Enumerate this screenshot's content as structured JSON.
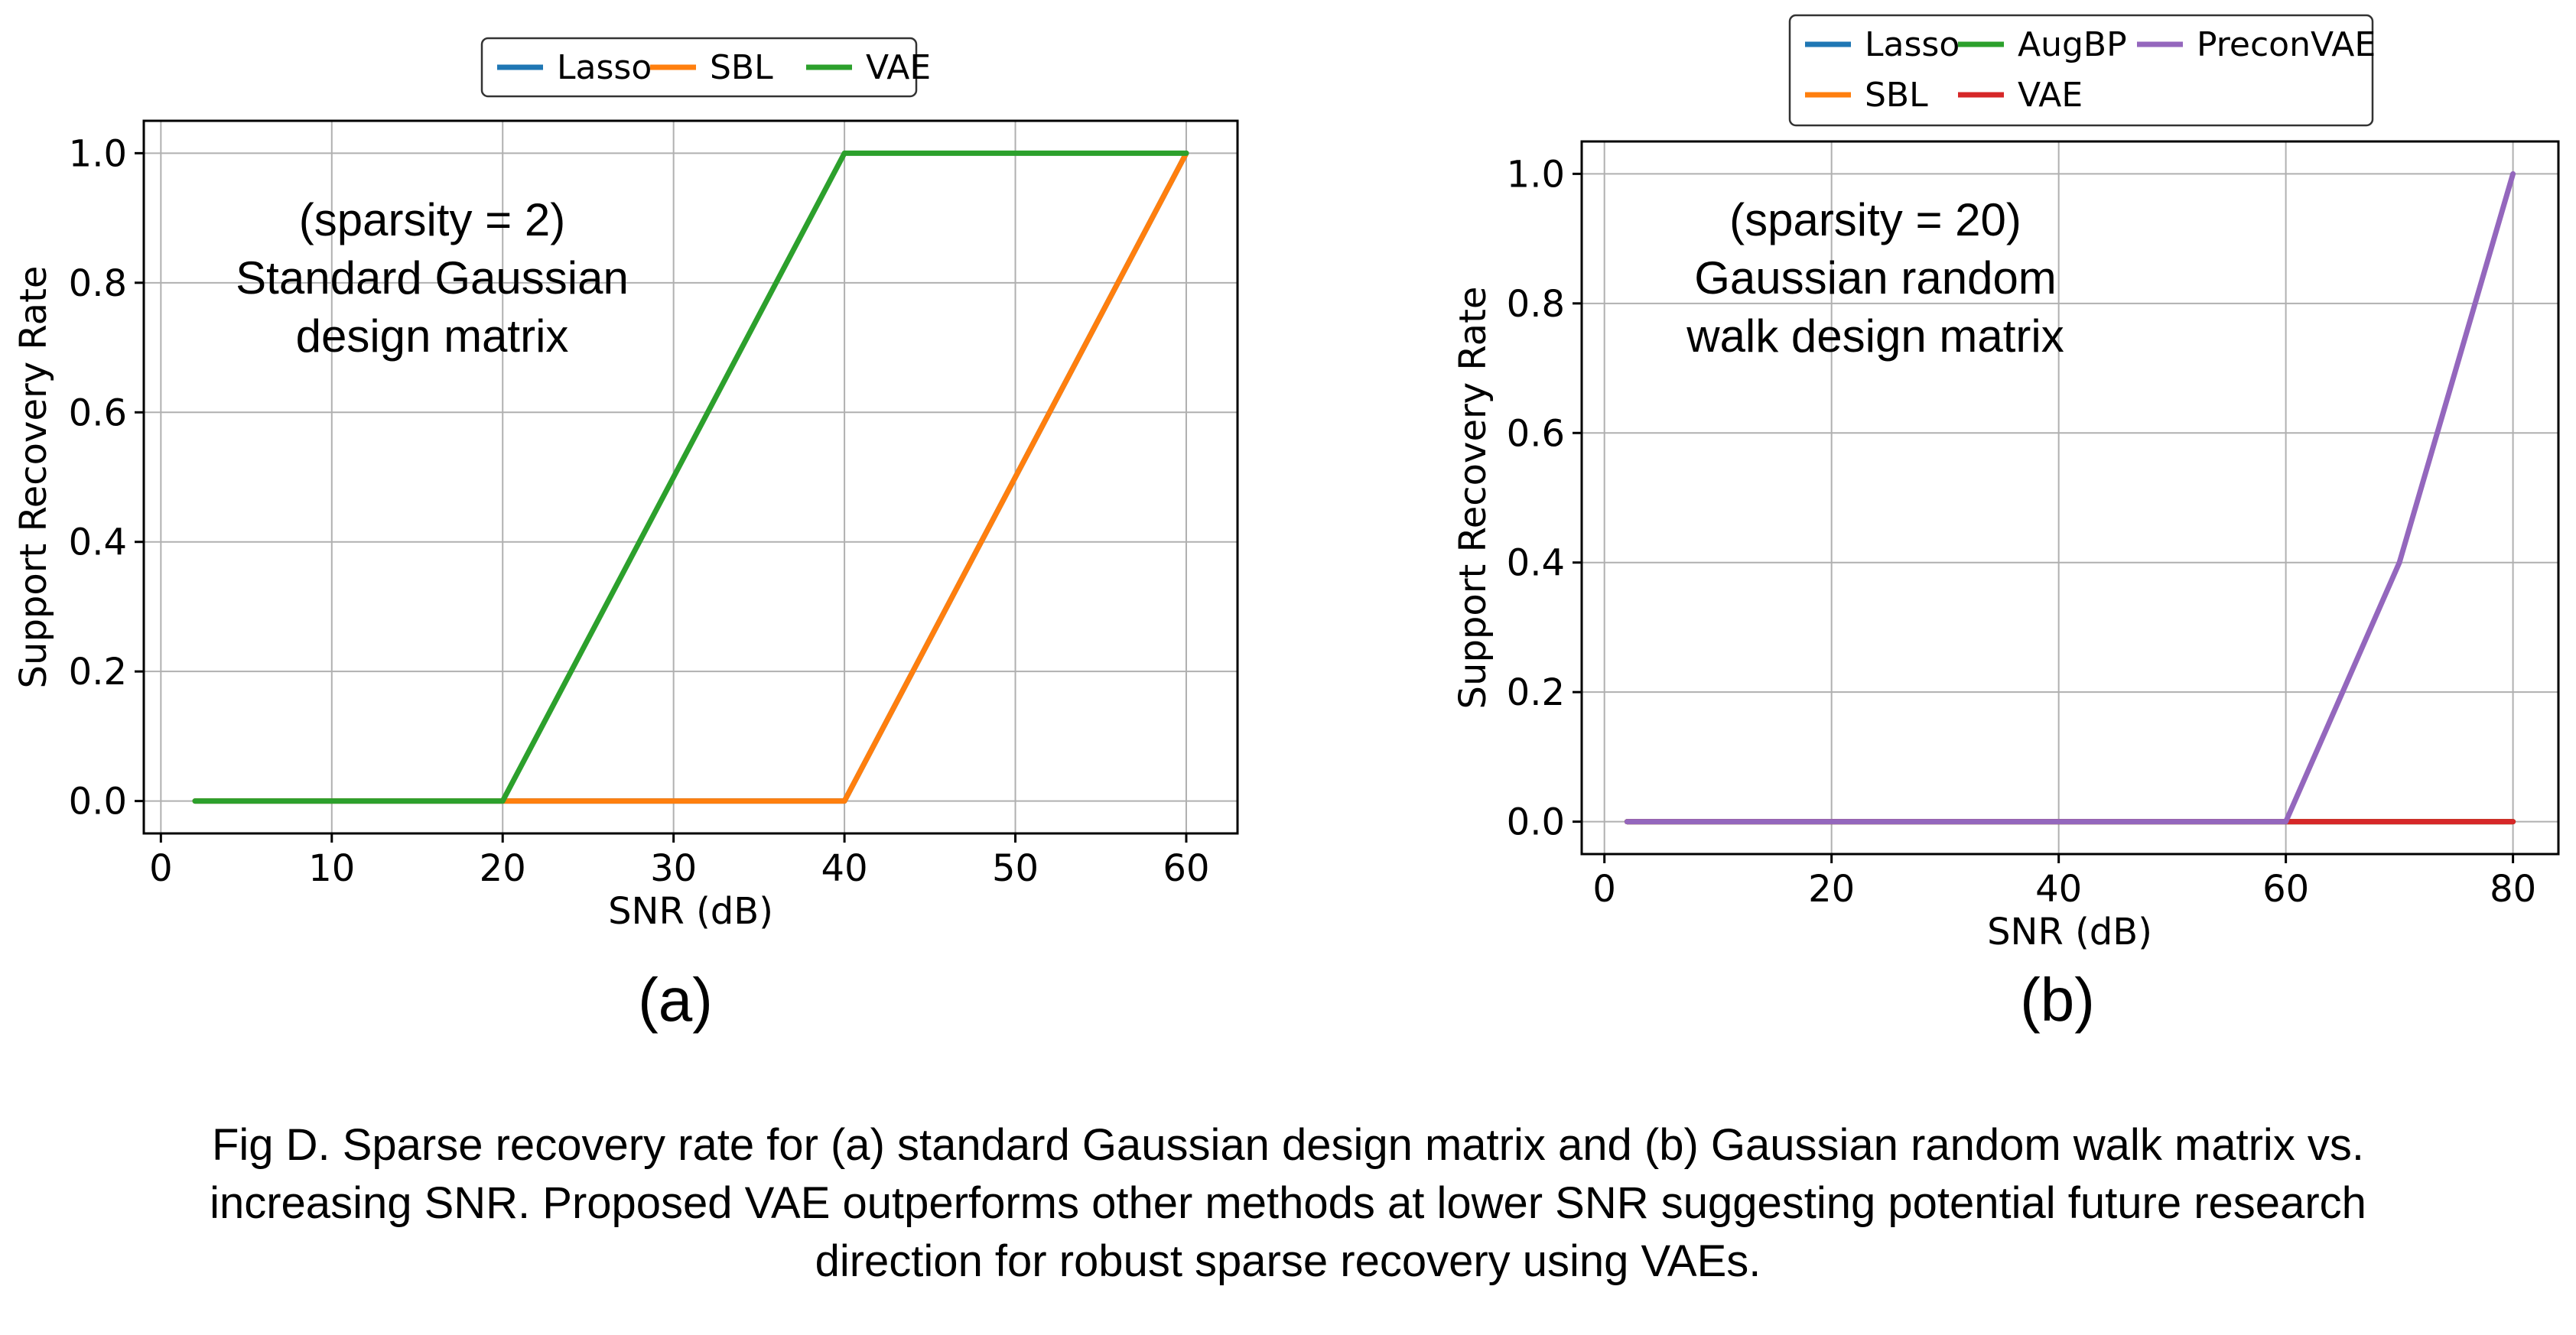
{
  "chart_data": [
    {
      "type": "line",
      "xlabel": "SNR (dB)",
      "ylabel": "Support Recovery Rate",
      "xlim": [
        -1,
        63
      ],
      "ylim": [
        -0.05,
        1.05
      ],
      "xticks": [
        "0",
        "10",
        "20",
        "30",
        "40",
        "50",
        "60"
      ],
      "yticks": [
        "0.0",
        "0.2",
        "0.4",
        "0.6",
        "0.8",
        "1.0"
      ],
      "grid": true,
      "legend_position": "top-center, above plot",
      "annotation": [
        "(sparsity = 2)",
        "Standard Gaussian",
        "design matrix"
      ],
      "panel_label": "(a)",
      "series": [
        {
          "name": "Lasso",
          "color": "#1f77b4",
          "x": [
            2,
            20,
            40,
            60
          ],
          "y": [
            0,
            0,
            0,
            1
          ]
        },
        {
          "name": "SBL",
          "color": "#ff7f0e",
          "x": [
            2,
            20,
            40,
            60
          ],
          "y": [
            0,
            0,
            0,
            1
          ]
        },
        {
          "name": "VAE",
          "color": "#2ca02c",
          "x": [
            2,
            20,
            40,
            60
          ],
          "y": [
            0,
            0,
            1,
            1
          ]
        }
      ]
    },
    {
      "type": "line",
      "xlabel": "SNR (dB)",
      "ylabel": "Support Recovery Rate",
      "xlim": [
        -2,
        84
      ],
      "ylim": [
        -0.05,
        1.05
      ],
      "xticks": [
        "0",
        "20",
        "40",
        "60",
        "80"
      ],
      "yticks": [
        "0.0",
        "0.2",
        "0.4",
        "0.6",
        "0.8",
        "1.0"
      ],
      "grid": true,
      "legend_position": "top-center, above plot",
      "annotation": [
        "(sparsity = 20)",
        "Gaussian random",
        "walk design matrix"
      ],
      "panel_label": "(b)",
      "series": [
        {
          "name": "Lasso",
          "color": "#1f77b4",
          "x": [
            2,
            20,
            40,
            60,
            70,
            80
          ],
          "y": [
            0,
            0,
            0,
            0,
            0,
            0
          ]
        },
        {
          "name": "SBL",
          "color": "#ff7f0e",
          "x": [
            2,
            20,
            40,
            60,
            70,
            80
          ],
          "y": [
            0,
            0,
            0,
            0,
            0,
            0
          ]
        },
        {
          "name": "AugBP",
          "color": "#2ca02c",
          "x": [
            2,
            20,
            40,
            60,
            70,
            80
          ],
          "y": [
            0,
            0,
            0,
            0,
            0,
            0
          ]
        },
        {
          "name": "VAE",
          "color": "#d62728",
          "x": [
            2,
            20,
            40,
            60,
            70,
            80
          ],
          "y": [
            0,
            0,
            0,
            0,
            0,
            0
          ]
        },
        {
          "name": "PreconVAE",
          "color": "#9467bd",
          "x": [
            2,
            20,
            40,
            60,
            70,
            80
          ],
          "y": [
            0,
            0,
            0,
            0,
            0.4,
            1
          ]
        }
      ]
    }
  ],
  "caption": [
    "Fig D. Sparse recovery rate for (a) standard Gaussian design matrix and (b) Gaussian random walk matrix vs.",
    "increasing SNR. Proposed VAE outperforms other methods at lower SNR suggesting potential future research",
    "direction for robust sparse recovery using VAEs."
  ]
}
